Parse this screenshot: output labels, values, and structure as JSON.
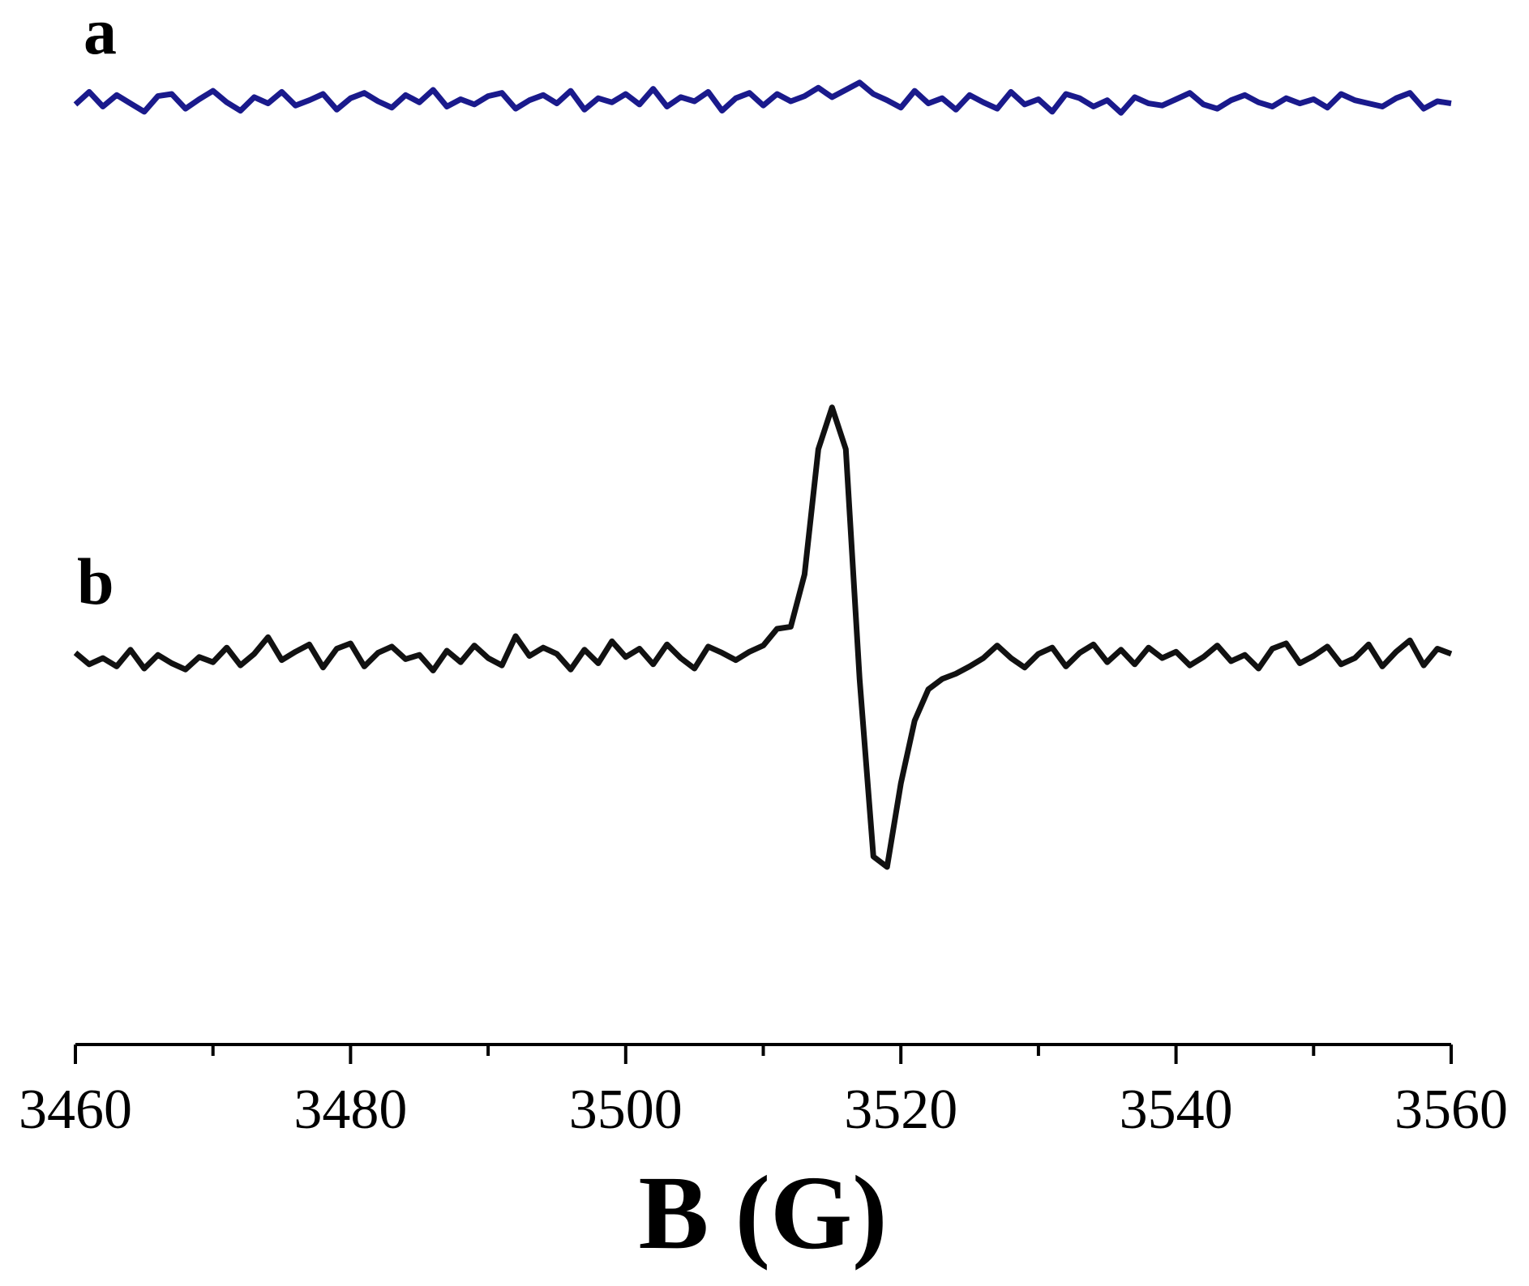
{
  "chart_data": {
    "type": "line",
    "x_label": "B (G)",
    "annotations": [
      "a",
      "b"
    ],
    "x": [
      3460,
      3461,
      3462,
      3463,
      3464,
      3465,
      3466,
      3467,
      3468,
      3469,
      3470,
      3471,
      3472,
      3473,
      3474,
      3475,
      3476,
      3477,
      3478,
      3479,
      3480,
      3481,
      3482,
      3483,
      3484,
      3485,
      3486,
      3487,
      3488,
      3489,
      3490,
      3491,
      3492,
      3493,
      3494,
      3495,
      3496,
      3497,
      3498,
      3499,
      3500,
      3501,
      3502,
      3503,
      3504,
      3505,
      3506,
      3507,
      3508,
      3509,
      3510,
      3511,
      3512,
      3513,
      3514,
      3515,
      3516,
      3517,
      3518,
      3519,
      3520,
      3521,
      3522,
      3523,
      3524,
      3525,
      3526,
      3527,
      3528,
      3529,
      3530,
      3531,
      3532,
      3533,
      3534,
      3535,
      3536,
      3537,
      3538,
      3539,
      3540,
      3541,
      3542,
      3543,
      3544,
      3545,
      3546,
      3547,
      3548,
      3549,
      3550,
      3551,
      3552,
      3553,
      3554,
      3555,
      3556,
      3557,
      3558,
      3559,
      3560
    ],
    "series": [
      {
        "color": "#1a1a8c",
        "values": [
          90.0,
          91.2,
          89.8,
          90.9,
          90.1,
          89.3,
          90.8,
          91.0,
          89.6,
          90.5,
          91.3,
          90.2,
          89.4,
          90.7,
          90.1,
          91.2,
          89.9,
          90.4,
          91.0,
          89.5,
          90.6,
          91.1,
          90.3,
          89.7,
          90.9,
          90.2,
          91.4,
          89.8,
          90.5,
          90.0,
          90.8,
          91.1,
          89.6,
          90.4,
          90.9,
          90.1,
          91.3,
          89.5,
          90.6,
          90.2,
          91.0,
          90.0,
          91.5,
          89.8,
          90.7,
          90.3,
          91.2,
          89.4,
          90.6,
          91.1,
          89.9,
          91.0,
          90.3,
          90.8,
          91.6,
          90.7,
          91.4,
          92.1,
          91.0,
          90.4,
          89.7,
          91.3,
          90.1,
          90.6,
          89.5,
          90.9,
          90.2,
          89.6,
          91.2,
          90.0,
          90.5,
          89.3,
          91.0,
          90.6,
          89.8,
          90.4,
          89.2,
          90.7,
          90.1,
          89.9,
          90.5,
          91.1,
          90.0,
          89.6,
          90.4,
          90.9,
          90.2,
          89.8,
          90.6,
          90.1,
          90.5,
          89.7,
          91.0,
          90.4,
          90.1,
          89.8,
          90.6,
          91.1,
          89.6,
          90.3,
          90.1
        ]
      },
      {
        "color": "#111111",
        "values": [
          37.5,
          36.4,
          37.0,
          36.2,
          37.8,
          36.0,
          37.3,
          36.5,
          35.9,
          37.1,
          36.6,
          38.0,
          36.3,
          37.4,
          39.0,
          36.8,
          37.6,
          38.3,
          36.1,
          37.9,
          38.4,
          36.2,
          37.5,
          38.1,
          36.9,
          37.3,
          35.8,
          37.7,
          36.6,
          38.2,
          37.0,
          36.3,
          39.1,
          37.2,
          38.0,
          37.4,
          35.9,
          37.8,
          36.5,
          38.6,
          37.1,
          37.9,
          36.4,
          38.3,
          37.0,
          36.0,
          38.1,
          37.5,
          36.8,
          37.6,
          38.2,
          39.8,
          40.0,
          45.0,
          57.0,
          61.0,
          57.0,
          35.0,
          18.0,
          17.0,
          25.0,
          31.0,
          34.0,
          35.0,
          35.5,
          36.2,
          37.0,
          38.2,
          37.0,
          36.1,
          37.4,
          38.0,
          36.2,
          37.5,
          38.3,
          36.6,
          37.8,
          36.4,
          38.0,
          37.0,
          37.6,
          36.3,
          37.1,
          38.2,
          36.7,
          37.3,
          36.0,
          37.9,
          38.4,
          36.5,
          37.2,
          38.1,
          36.4,
          37.0,
          38.3,
          36.2,
          37.6,
          38.7,
          36.3,
          37.9,
          37.4
        ]
      }
    ],
    "xlim": [
      3460,
      3560
    ],
    "xticks": [
      3460,
      3480,
      3500,
      3520,
      3540,
      3560
    ],
    "xminor_ticks": [
      3470,
      3490,
      3510,
      3530,
      3550
    ],
    "ylim": [
      0,
      100
    ]
  }
}
